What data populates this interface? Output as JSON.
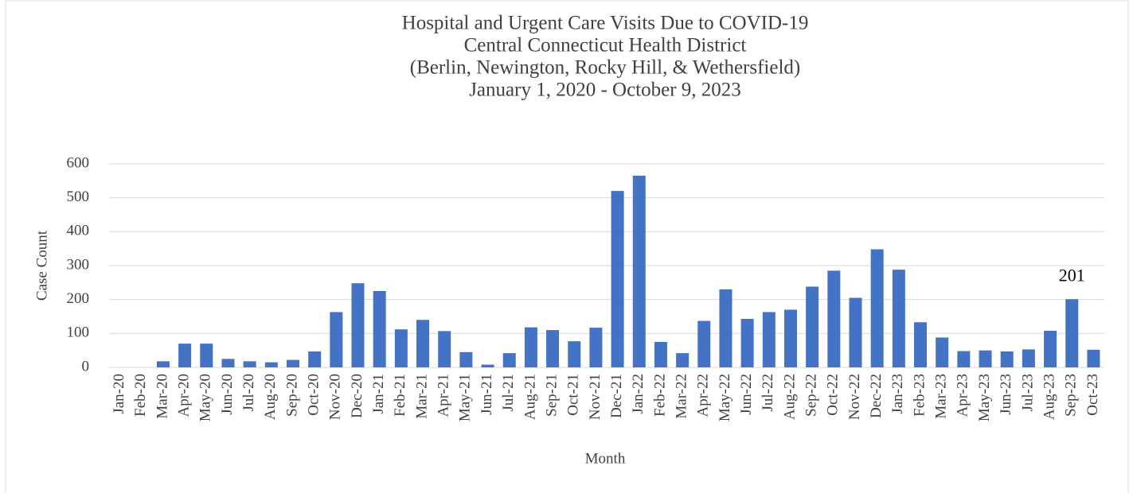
{
  "chart_data": {
    "type": "bar",
    "title": [
      "Hospital and Urgent Care Visits Due to COVID-19",
      "Central Connecticut Health District",
      "(Berlin, Newington, Rocky Hill, & Wethersfield)",
      "January 1, 2020 - October 9, 2023"
    ],
    "x_label": "Month",
    "y_label": "Case Count",
    "categories": [
      "Jan-20",
      "Feb-20",
      "Mar-20",
      "Apr-20",
      "May-20",
      "Jun-20",
      "Jul-20",
      "Aug-20",
      "Sep-20",
      "Oct-20",
      "Nov-20",
      "Dec-20",
      "Jan-21",
      "Feb-21",
      "Mar-21",
      "Apr-21",
      "May-21",
      "Jun-21",
      "Jul-21",
      "Aug-21",
      "Sep-21",
      "Oct-21",
      "Nov-21",
      "Dec-21",
      "Jan-22",
      "Feb-22",
      "Mar-22",
      "Apr-22",
      "May-22",
      "Jun-22",
      "Jul-22",
      "Aug-22",
      "Sep-22",
      "Oct-22",
      "Nov-22",
      "Dec-22",
      "Jan-23",
      "Feb-23",
      "Mar-23",
      "Apr-23",
      "May-23",
      "Jun-23",
      "Jul-23",
      "Aug-23",
      "Sep-23",
      "Oct-23"
    ],
    "values": [
      0,
      0,
      18,
      70,
      70,
      25,
      18,
      15,
      22,
      47,
      163,
      248,
      225,
      112,
      140,
      107,
      45,
      8,
      42,
      118,
      110,
      77,
      117,
      520,
      565,
      75,
      42,
      137,
      230,
      143,
      163,
      170,
      238,
      285,
      205,
      348,
      288,
      133,
      88,
      48,
      50,
      47,
      53,
      108,
      201,
      52
    ],
    "value_labels": [
      null,
      null,
      null,
      null,
      null,
      null,
      null,
      null,
      null,
      null,
      null,
      null,
      null,
      null,
      null,
      null,
      null,
      null,
      null,
      null,
      null,
      null,
      null,
      null,
      null,
      null,
      null,
      null,
      null,
      null,
      null,
      null,
      null,
      null,
      null,
      null,
      null,
      null,
      null,
      null,
      null,
      null,
      null,
      null,
      "201",
      null
    ],
    "color": "#4472c4",
    "ylim": [
      0,
      600
    ],
    "yticks": [
      0,
      100,
      200,
      300,
      400,
      500,
      600
    ],
    "grid": true
  }
}
